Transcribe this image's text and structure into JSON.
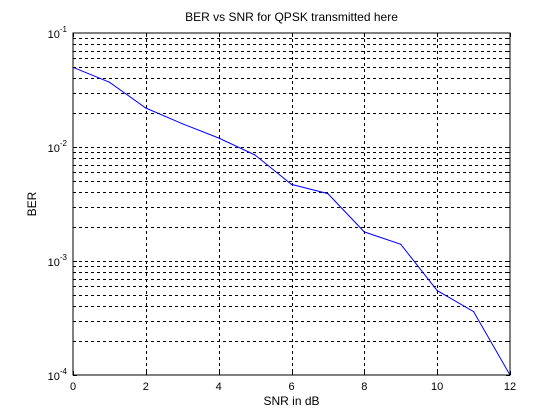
{
  "chart_data": {
    "type": "line",
    "title": "BER vs SNR for QPSK transmitted here",
    "xlabel": "SNR in dB",
    "ylabel": "BER",
    "xlim": [
      0,
      12
    ],
    "ylim": [
      0.0001,
      0.1
    ],
    "yscale": "log",
    "grid": true,
    "x_ticks": [
      0,
      2,
      4,
      6,
      8,
      10,
      12
    ],
    "x_tick_labels": [
      "0",
      "2",
      "4",
      "6",
      "8",
      "10",
      "12"
    ],
    "y_ticks": [
      {
        "value": 0.0001,
        "base": "10",
        "exp": "-4"
      },
      {
        "value": 0.001,
        "base": "10",
        "exp": "-3"
      },
      {
        "value": 0.01,
        "base": "10",
        "exp": "-2"
      },
      {
        "value": 0.1,
        "base": "10",
        "exp": "-1"
      }
    ],
    "series": [
      {
        "color": "#0000ff",
        "x": [
          0,
          1,
          2,
          3,
          4,
          5,
          6,
          7,
          8,
          9,
          10,
          11,
          12
        ],
        "y": [
          0.05,
          0.037,
          0.022,
          0.016,
          0.012,
          0.0085,
          0.0047,
          0.0039,
          0.0018,
          0.0014,
          0.00055,
          0.00036,
          0.0001
        ]
      }
    ]
  }
}
